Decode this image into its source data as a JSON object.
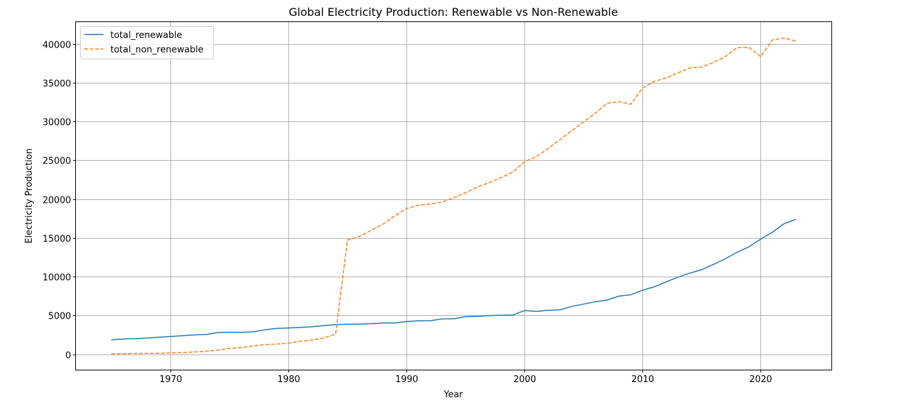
{
  "chart_data": {
    "type": "line",
    "title": "Global Electricity Production: Renewable vs Non-Renewable",
    "xlabel": "Year",
    "ylabel": "Electricity Production",
    "xlim": [
      1962,
      2026
    ],
    "ylim": [
      -2000,
      42800
    ],
    "xticks": [
      1970,
      1980,
      1990,
      2000,
      2010,
      2020
    ],
    "yticks": [
      0,
      5000,
      10000,
      15000,
      20000,
      25000,
      30000,
      35000,
      40000
    ],
    "grid": true,
    "legend_position": "top-left",
    "x": [
      1965,
      1966,
      1967,
      1968,
      1969,
      1970,
      1971,
      1972,
      1973,
      1974,
      1975,
      1976,
      1977,
      1978,
      1979,
      1980,
      1981,
      1982,
      1983,
      1984,
      1985,
      1986,
      1987,
      1988,
      1989,
      1990,
      1991,
      1992,
      1993,
      1994,
      1995,
      1996,
      1997,
      1998,
      1999,
      2000,
      2001,
      2002,
      2003,
      2004,
      2005,
      2006,
      2007,
      2008,
      2009,
      2010,
      2011,
      2012,
      2013,
      2014,
      2015,
      2016,
      2017,
      2018,
      2019,
      2020,
      2021,
      2022,
      2023
    ],
    "series": [
      {
        "name": "total_renewable",
        "color": "#1f77b4",
        "dash": "solid",
        "values": [
          1850,
          1950,
          2000,
          2080,
          2180,
          2280,
          2380,
          2480,
          2530,
          2780,
          2830,
          2810,
          2880,
          3130,
          3320,
          3380,
          3450,
          3530,
          3680,
          3810,
          3850,
          3880,
          3920,
          4020,
          4020,
          4200,
          4300,
          4310,
          4540,
          4560,
          4830,
          4880,
          4970,
          5010,
          5050,
          5620,
          5510,
          5660,
          5710,
          6150,
          6450,
          6760,
          6970,
          7480,
          7650,
          8250,
          8680,
          9320,
          9930,
          10440,
          10890,
          11560,
          12290,
          13120,
          13830,
          14810,
          15720,
          16820,
          17380
        ]
      },
      {
        "name": "total_non_renewable",
        "color": "#ff7f0e",
        "dash": "dashed",
        "values": [
          50,
          70,
          90,
          100,
          120,
          150,
          200,
          280,
          370,
          520,
          750,
          860,
          1060,
          1230,
          1300,
          1420,
          1680,
          1820,
          2100,
          2600,
          14700,
          15150,
          15950,
          16750,
          17800,
          18750,
          19200,
          19350,
          19600,
          20150,
          20800,
          21550,
          22100,
          22750,
          23450,
          24800,
          25450,
          26500,
          27650,
          28800,
          29950,
          31050,
          32350,
          32550,
          32200,
          34300,
          35150,
          35600,
          36250,
          36900,
          37000,
          37600,
          38350,
          39500,
          39550,
          38350,
          40500,
          40750,
          40350
        ]
      }
    ]
  }
}
